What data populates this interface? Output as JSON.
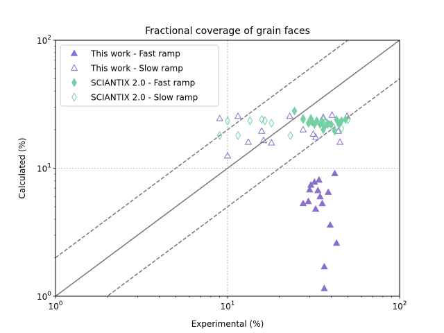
{
  "chart_data": {
    "type": "scatter",
    "title": "Fractional coverage of grain faces",
    "xlabel": "Experimental (%)",
    "ylabel": "Calculated (%)",
    "xscale": "log",
    "yscale": "log",
    "xlim": [
      1,
      100
    ],
    "ylim": [
      1,
      100
    ],
    "grid": "dotted at 10",
    "legend_position": "top-left",
    "x_ticks": [
      {
        "base": "10",
        "exp": "0",
        "value": 1
      },
      {
        "base": "10",
        "exp": "1",
        "value": 10
      },
      {
        "base": "10",
        "exp": "2",
        "value": 100
      }
    ],
    "y_ticks": [
      {
        "base": "10",
        "exp": "0",
        "value": 1
      },
      {
        "base": "10",
        "exp": "1",
        "value": 10
      },
      {
        "base": "10",
        "exp": "2",
        "value": 100
      }
    ],
    "reference_lines": [
      {
        "style": "solid",
        "color": "#777777",
        "factor": 1
      },
      {
        "style": "dashed",
        "color": "#777777",
        "factor": 2
      },
      {
        "style": "dashed",
        "color": "#777777",
        "factor": 0.5
      }
    ],
    "series": [
      {
        "name": "This work - Fast ramp",
        "marker": "triangle",
        "filled": true,
        "color": "#8a6fcb",
        "points": [
          [
            27.5,
            5.3
          ],
          [
            29.5,
            5.5
          ],
          [
            30,
            6.8
          ],
          [
            30.5,
            7.4
          ],
          [
            32,
            7.8
          ],
          [
            32.5,
            4.8
          ],
          [
            33.5,
            6.7
          ],
          [
            34,
            8.1
          ],
          [
            34.5,
            6.0
          ],
          [
            35.5,
            5.3
          ],
          [
            36.5,
            1.7
          ],
          [
            36.5,
            1.15
          ],
          [
            38.5,
            6.5
          ],
          [
            39.5,
            3.6
          ],
          [
            42,
            9.1
          ],
          [
            43,
            2.6
          ]
        ]
      },
      {
        "name": "This work - Slow ramp",
        "marker": "triangle",
        "filled": false,
        "color": "#8a6fcb",
        "points": [
          [
            9,
            24.5
          ],
          [
            10,
            12.5
          ],
          [
            11.5,
            25.5
          ],
          [
            13.2,
            16
          ],
          [
            15.8,
            19.5
          ],
          [
            16.2,
            16.5
          ],
          [
            18,
            15.8
          ],
          [
            23,
            25.5
          ],
          [
            27.5,
            20
          ],
          [
            31.5,
            18.5
          ],
          [
            32.5,
            17.5
          ],
          [
            36,
            25
          ],
          [
            39,
            22
          ],
          [
            40.5,
            26
          ],
          [
            44,
            19.5
          ],
          [
            45,
            16
          ],
          [
            49.5,
            25.5
          ]
        ]
      },
      {
        "name": "SCIANTIX 2.0 - Fast ramp",
        "marker": "thin_diamond",
        "filled": true,
        "color": "#74d1a5",
        "points": [
          [
            24.5,
            28
          ],
          [
            27.5,
            24
          ],
          [
            29.5,
            22.5
          ],
          [
            30.5,
            24.5
          ],
          [
            31,
            23
          ],
          [
            32,
            22
          ],
          [
            33,
            23.5
          ],
          [
            34.5,
            22
          ],
          [
            35.5,
            23
          ],
          [
            36,
            20
          ],
          [
            36.5,
            21
          ],
          [
            38,
            22.5
          ],
          [
            40,
            22
          ],
          [
            42,
            19.5
          ],
          [
            43,
            24
          ],
          [
            44.5,
            22.5
          ],
          [
            46,
            23.5
          ],
          [
            48.5,
            24
          ]
        ]
      },
      {
        "name": "SCIANTIX 2.0 - Slow ramp",
        "marker": "thin_diamond",
        "filled": false,
        "color": "#74d1a5",
        "points": [
          [
            9,
            18
          ],
          [
            10,
            23.5
          ],
          [
            11.5,
            18
          ],
          [
            13.5,
            23.5
          ],
          [
            15.8,
            24
          ],
          [
            16.5,
            23.5
          ],
          [
            18,
            22.5
          ],
          [
            23.2,
            18
          ],
          [
            27.5,
            24.5
          ],
          [
            30,
            23
          ],
          [
            36,
            24
          ],
          [
            38,
            22
          ],
          [
            41,
            21
          ],
          [
            44.5,
            22
          ],
          [
            46,
            20.5
          ],
          [
            50,
            24
          ]
        ]
      }
    ]
  }
}
